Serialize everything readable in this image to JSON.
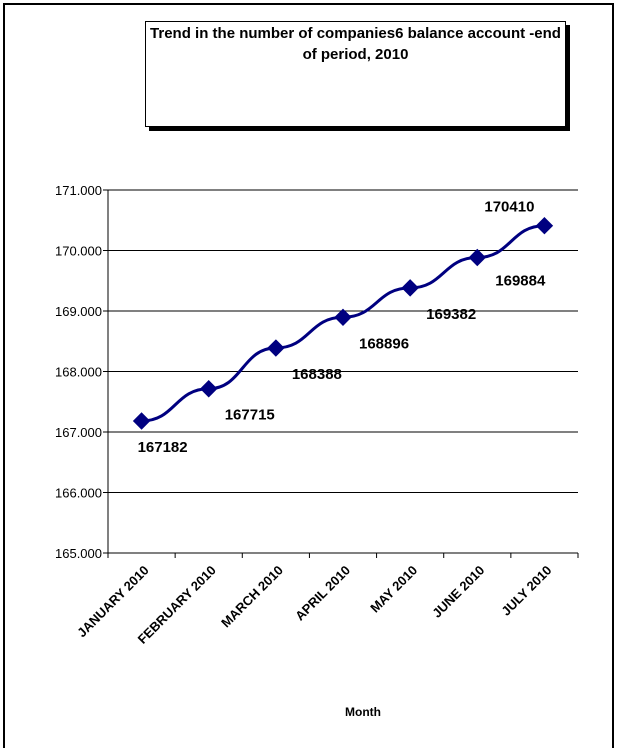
{
  "chart_data": {
    "type": "line",
    "title": "Trend in the number of companies6 balance account -end of period, 2010",
    "xlabel": "Month",
    "ylabel": "",
    "categories": [
      "JANUARY 2010",
      "FEBRUARY 2010",
      "MARCH 2010",
      "APRIL 2010",
      "MAY 2010",
      "JUNE 2010",
      "JULY 2010"
    ],
    "series": [
      {
        "values": [
          167182,
          167715,
          168388,
          168896,
          169382,
          169884,
          170410
        ],
        "data_labels": [
          "167182",
          "167715",
          "168388",
          "168896",
          "169382",
          "169884",
          "170410"
        ]
      }
    ],
    "yticks": [
      "165.000",
      "166.000",
      "167.000",
      "168.000",
      "169.000",
      "170.000",
      "171.000"
    ],
    "ylim": [
      165000,
      171000
    ],
    "grid": true,
    "legend": "none",
    "line_color": "#000080",
    "marker": "diamond"
  }
}
